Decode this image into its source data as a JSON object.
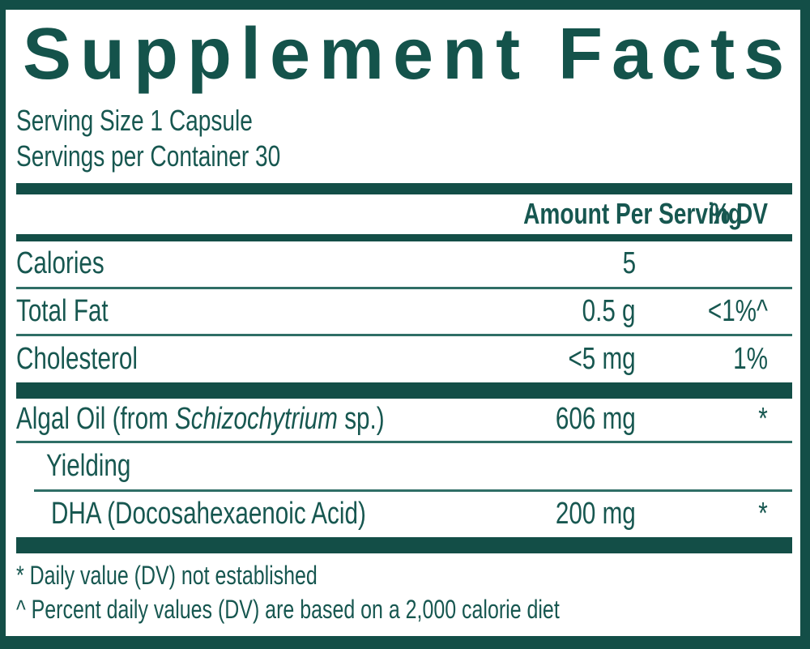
{
  "label": {
    "title": "Supplement Facts",
    "serving_size": "Serving Size 1 Capsule",
    "servings_per_container": "Servings per Container 30",
    "columns": {
      "amount": "Amount Per Serving",
      "dv": "% DV"
    },
    "rows": [
      {
        "name": "Calories",
        "amount": "5",
        "dv": ""
      },
      {
        "name": "Total Fat",
        "amount": "0.5 g",
        "dv": "<1%^"
      },
      {
        "name": "Cholesterol",
        "amount": "<5 mg",
        "dv": "1%"
      },
      {
        "name_prefix": "Algal Oil (from ",
        "name_italic": "Schizochytrium",
        "name_suffix": " sp.)",
        "amount": "606 mg",
        "dv": "*"
      },
      {
        "name": "Yielding",
        "amount": "",
        "dv": ""
      },
      {
        "name": "DHA (Docosahexaenoic Acid)",
        "amount": "200 mg",
        "dv": "*"
      }
    ],
    "footnotes": [
      "* Daily value (DV) not established",
      "^ Percent daily values (DV) are based on a 2,000 calorie diet"
    ],
    "colors": {
      "primary": "#134e47",
      "text": "#175750",
      "separator": "#2f6e66"
    }
  }
}
